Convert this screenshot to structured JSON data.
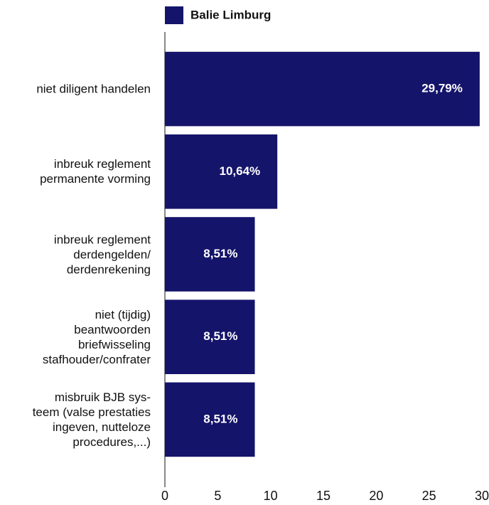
{
  "chart_data": {
    "type": "barh",
    "legend": "Balie Limburg",
    "color": "#14146b",
    "categories": [
      "niet diligent handelen",
      "inbreuk reglement\npermanente vorming",
      "inbreuk reglement\nderdengelden/\nderdenrekening",
      "niet (tijdig)\nbeantwoorden\nbriefwisseling\nstafhouder/confrater",
      "misbruik BJB sys-\nteem (valse prestaties\ningeven, nutteloze\nprocedures,...)"
    ],
    "values": [
      29.79,
      10.64,
      8.51,
      8.51,
      8.51
    ],
    "value_labels": [
      "29,79%",
      "10,64%",
      "8,51%",
      "8,51%",
      "8,51%"
    ],
    "xlim": [
      0,
      30
    ],
    "xticks": [
      0,
      5,
      10,
      15,
      20,
      25,
      30
    ]
  }
}
